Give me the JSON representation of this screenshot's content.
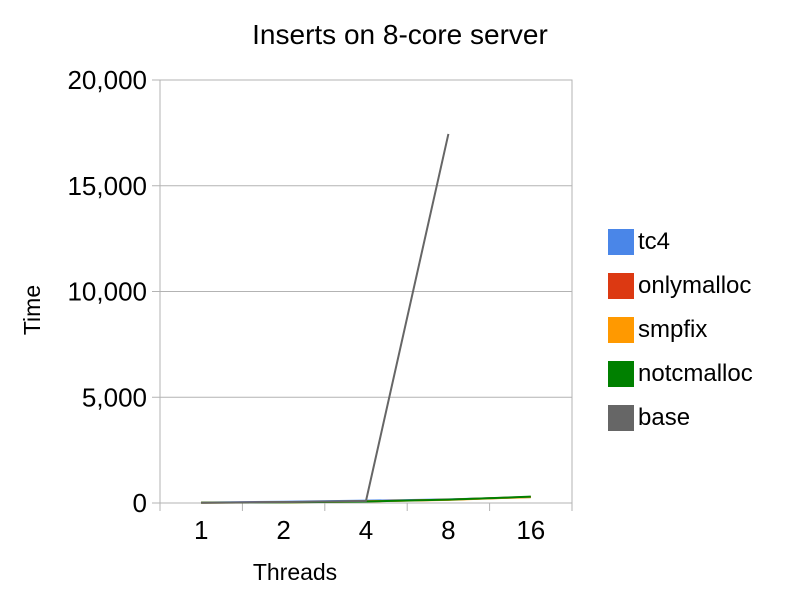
{
  "chart_data": {
    "type": "line",
    "title": "Inserts on 8-core server",
    "xlabel": "Threads",
    "ylabel": "Time",
    "categories": [
      "1",
      "2",
      "4",
      "8",
      "16"
    ],
    "ylim": [
      0,
      20000
    ],
    "yticks": [
      0,
      5000,
      10000,
      15000,
      20000
    ],
    "ytick_labels": [
      "0",
      "5,000",
      "10,000",
      "15,000",
      "20,000"
    ],
    "grid": true,
    "legend_position": "right",
    "series": [
      {
        "name": "tc4",
        "color": "#4A86E8",
        "values": [
          20,
          60,
          110,
          170,
          280
        ]
      },
      {
        "name": "onlymalloc",
        "color": "#DC3912",
        "values": [
          15,
          35,
          80,
          160,
          290
        ]
      },
      {
        "name": "smpfix",
        "color": "#FF9900",
        "values": [
          15,
          30,
          75,
          150,
          280
        ]
      },
      {
        "name": "notcmalloc",
        "color": "#008000",
        "values": [
          15,
          30,
          70,
          160,
          300
        ]
      },
      {
        "name": "base",
        "color": "#666666",
        "values": [
          10,
          40,
          100,
          17450,
          null
        ]
      }
    ]
  }
}
